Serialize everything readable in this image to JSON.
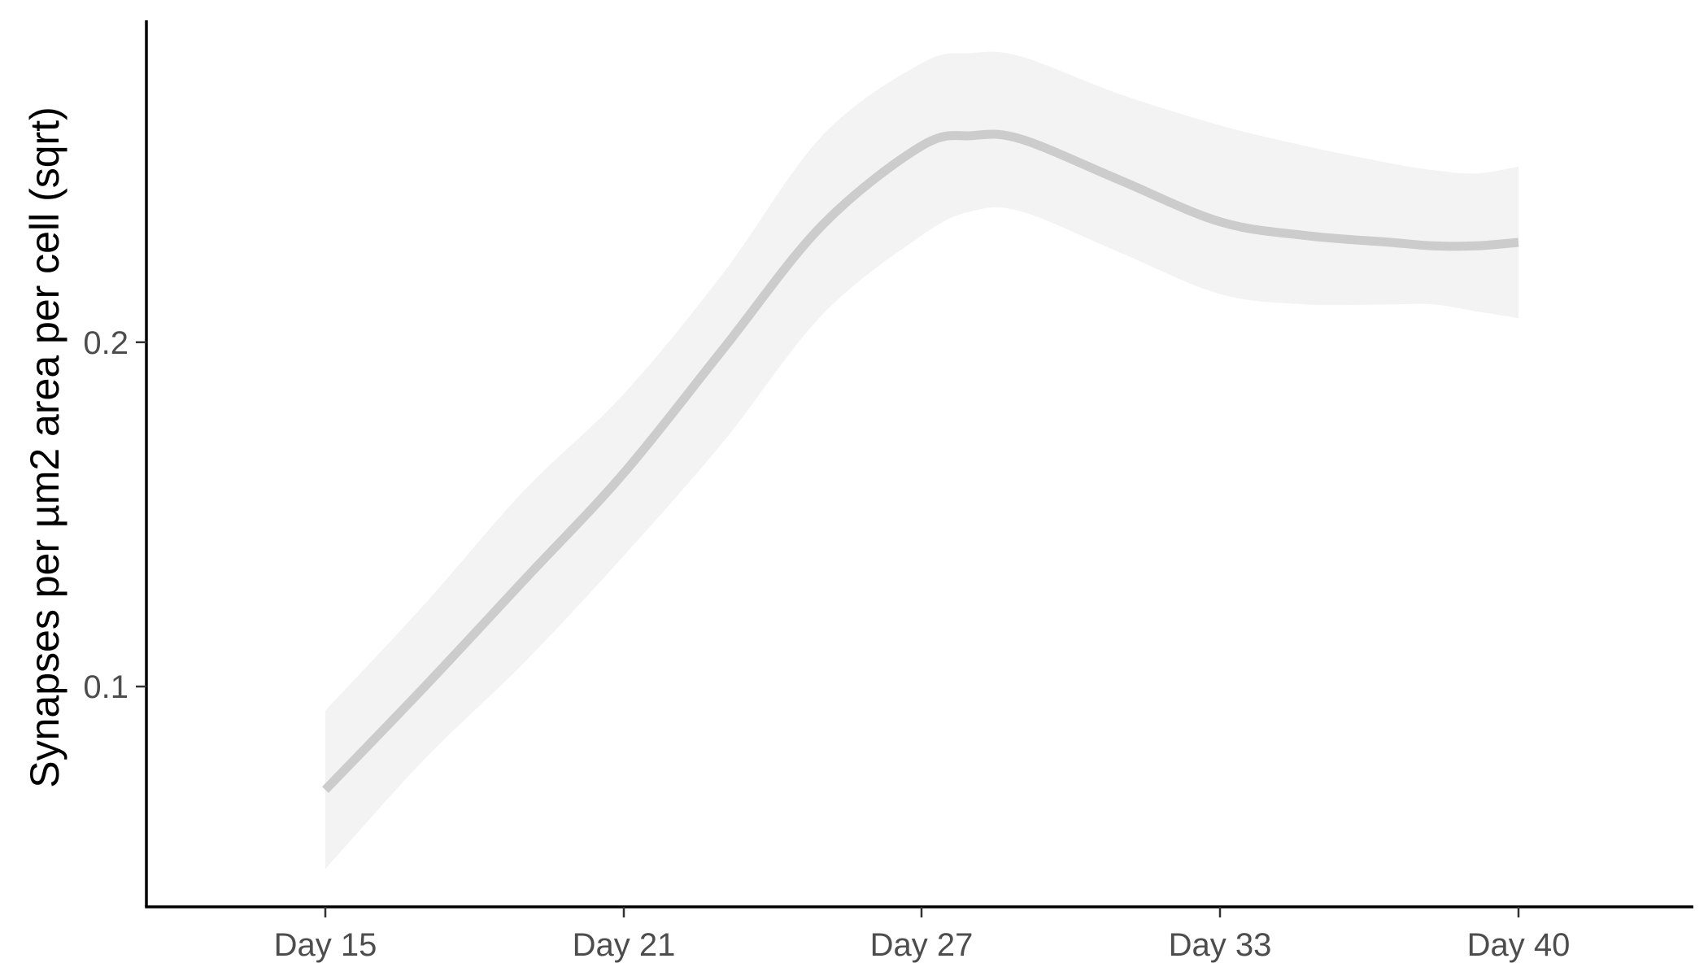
{
  "chart_data": {
    "type": "line",
    "xlabel": "",
    "ylabel": "Synapses per µm2 area per cell (sqrt)",
    "x_categories": [
      "Day 15",
      "Day 21",
      "Day 27",
      "Day 33",
      "Day 40"
    ],
    "x_range": [
      "Day 11.4",
      "Day 46.6"
    ],
    "ylim": [
      0.036,
      0.2935
    ],
    "yticks": [
      0.1,
      0.2
    ],
    "ytick_labels": [
      "0.1",
      "0.2"
    ],
    "grid": false,
    "legend": "none",
    "colors": {
      "line": "#cccccc",
      "ribbon": "#f3f3f3",
      "axis": "#000000",
      "tick_label": "#4d4d4d"
    },
    "series": [
      {
        "x": [
          15,
          17,
          19,
          21,
          23,
          25,
          27,
          28,
          29,
          31,
          33,
          35,
          37,
          38,
          39,
          40
        ],
        "y": [
          0.07,
          0.1,
          0.131,
          0.162,
          0.198,
          0.234,
          0.257,
          0.26,
          0.259,
          0.247,
          0.235,
          0.231,
          0.229,
          0.228,
          0.228,
          0.229
        ],
        "lower": [
          0.047,
          0.079,
          0.107,
          0.138,
          0.171,
          0.208,
          0.231,
          0.238,
          0.238,
          0.226,
          0.214,
          0.211,
          0.211,
          0.211,
          0.209,
          0.207
        ],
        "upper": [
          0.093,
          0.124,
          0.157,
          0.185,
          0.22,
          0.26,
          0.281,
          0.284,
          0.283,
          0.272,
          0.263,
          0.257,
          0.252,
          0.25,
          0.249,
          0.251
        ]
      }
    ]
  }
}
